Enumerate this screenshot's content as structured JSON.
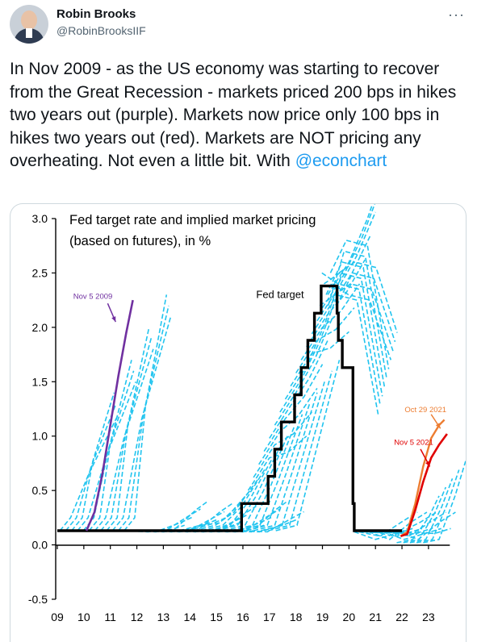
{
  "author": {
    "name": "Robin Brooks",
    "handle": "@RobinBrooksIIF"
  },
  "tweet": {
    "text": "In Nov 2009 - as the US economy was starting to recover from the Great Recession - markets priced 200 bps in hikes two years out (purple). Markets now price only 100 bps in hikes two years out (red). Markets are NOT pricing any overheating. Not even a little bit. With ",
    "mention": "@econchart"
  },
  "colors": {
    "fed_target": "#000000",
    "nov2009": "#7030a0",
    "oct2021": "#ed7d31",
    "nov2021": "#e00000",
    "implied": "#21c4ef",
    "mention": "#1d9bf0"
  },
  "chart_data": {
    "type": "line",
    "title": "Fed target rate and implied market pricing",
    "subtitle": "(based on futures), in %",
    "ylim": [
      -0.5,
      3.0
    ],
    "yticks": [
      "3.0",
      "2.5",
      "2.0",
      "1.5",
      "1.0",
      "0.5",
      "0.0",
      "-0.5"
    ],
    "xticks": [
      "09",
      "10",
      "11",
      "12",
      "13",
      "14",
      "15",
      "16",
      "17",
      "18",
      "19",
      "20",
      "21",
      "22",
      "23"
    ],
    "annotations": {
      "fed_target": "Fed target",
      "nov2009": "Nov 5 2009",
      "oct2021": "Oct 29 2021",
      "nov2021": "Nov 5 2021"
    },
    "series": [
      {
        "name": "Fed target",
        "points": [
          [
            9,
            0.13
          ],
          [
            15.95,
            0.13
          ],
          [
            15.95,
            0.38
          ],
          [
            16.95,
            0.38
          ],
          [
            16.95,
            0.63
          ],
          [
            17.2,
            0.63
          ],
          [
            17.2,
            0.88
          ],
          [
            17.45,
            0.88
          ],
          [
            17.45,
            1.13
          ],
          [
            17.95,
            1.13
          ],
          [
            17.95,
            1.38
          ],
          [
            18.2,
            1.38
          ],
          [
            18.2,
            1.63
          ],
          [
            18.45,
            1.63
          ],
          [
            18.45,
            1.88
          ],
          [
            18.7,
            1.88
          ],
          [
            18.7,
            2.13
          ],
          [
            18.95,
            2.13
          ],
          [
            18.95,
            2.38
          ],
          [
            19.55,
            2.38
          ],
          [
            19.55,
            2.13
          ],
          [
            19.6,
            2.13
          ],
          [
            19.6,
            1.88
          ],
          [
            19.75,
            1.88
          ],
          [
            19.75,
            1.63
          ],
          [
            20.15,
            1.63
          ],
          [
            20.15,
            0.38
          ],
          [
            20.2,
            0.38
          ],
          [
            20.2,
            0.13
          ],
          [
            22.0,
            0.13
          ]
        ]
      },
      {
        "name": "Nov 5 2009",
        "points": [
          [
            10.1,
            0.13
          ],
          [
            10.4,
            0.3
          ],
          [
            10.7,
            0.65
          ],
          [
            11.0,
            1.1
          ],
          [
            11.3,
            1.55
          ],
          [
            11.6,
            1.95
          ],
          [
            11.85,
            2.25
          ]
        ]
      },
      {
        "name": "Oct 29 2021",
        "points": [
          [
            21.95,
            0.08
          ],
          [
            22.2,
            0.12
          ],
          [
            22.5,
            0.38
          ],
          [
            22.8,
            0.72
          ],
          [
            23.1,
            0.98
          ],
          [
            23.4,
            1.1
          ],
          [
            23.6,
            1.15
          ]
        ]
      },
      {
        "name": "Nov 5 2021",
        "points": [
          [
            21.95,
            0.08
          ],
          [
            22.2,
            0.1
          ],
          [
            22.5,
            0.32
          ],
          [
            22.8,
            0.58
          ],
          [
            23.1,
            0.8
          ],
          [
            23.4,
            0.92
          ],
          [
            23.7,
            1.02
          ]
        ]
      }
    ]
  }
}
